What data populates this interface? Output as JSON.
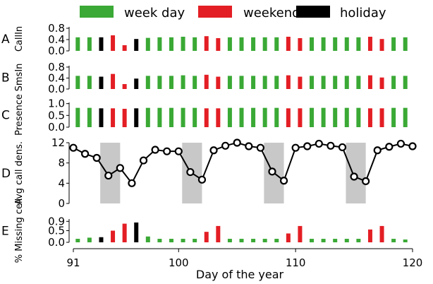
{
  "legend": [
    {
      "label": "week day",
      "color": "#3aa935"
    },
    {
      "label": "weekend",
      "color": "#e31e24"
    },
    {
      "label": "holiday",
      "color": "#000000"
    }
  ],
  "xaxis": {
    "label": "Day of the year",
    "ticks": [
      91,
      100,
      110,
      120
    ],
    "range": [
      91,
      120
    ]
  },
  "chart_data": [
    {
      "type": "bar",
      "panel_label": "A",
      "ylabel": "CallIn",
      "ylim": [
        0,
        0.85
      ],
      "yticks": [
        0.0,
        0.4,
        0.8
      ],
      "ytick_labels": [
        "0.0",
        "0.4",
        "0.8"
      ],
      "x": [
        91,
        92,
        93,
        94,
        95,
        96,
        97,
        98,
        99,
        100,
        101,
        102,
        103,
        104,
        105,
        106,
        107,
        108,
        109,
        110,
        111,
        112,
        113,
        114,
        115,
        116,
        117,
        118,
        119
      ],
      "categories": [
        "weekday",
        "weekday",
        "holiday",
        "weekend",
        "weekend",
        "holiday",
        "weekday",
        "weekday",
        "weekday",
        "weekday",
        "weekday",
        "weekend",
        "weekend",
        "weekday",
        "weekday",
        "weekday",
        "weekday",
        "weekday",
        "weekend",
        "weekend",
        "weekday",
        "weekday",
        "weekday",
        "weekday",
        "weekday",
        "weekend",
        "weekend",
        "weekday",
        "weekday"
      ],
      "values": [
        0.48,
        0.48,
        0.48,
        0.55,
        0.2,
        0.42,
        0.46,
        0.48,
        0.48,
        0.5,
        0.48,
        0.52,
        0.45,
        0.48,
        0.48,
        0.48,
        0.48,
        0.48,
        0.5,
        0.45,
        0.48,
        0.48,
        0.48,
        0.48,
        0.48,
        0.5,
        0.42,
        0.48,
        0.48
      ]
    },
    {
      "type": "bar",
      "panel_label": "B",
      "ylabel": "SmsIn",
      "ylim": [
        0,
        0.85
      ],
      "yticks": [
        0.0,
        0.4,
        0.8
      ],
      "ytick_labels": [
        "0.0",
        "0.4",
        "0.8"
      ],
      "x": [
        91,
        92,
        93,
        94,
        95,
        96,
        97,
        98,
        99,
        100,
        101,
        102,
        103,
        104,
        105,
        106,
        107,
        108,
        109,
        110,
        111,
        112,
        113,
        114,
        115,
        116,
        117,
        118,
        119
      ],
      "categories": [
        "weekday",
        "weekday",
        "holiday",
        "weekend",
        "weekend",
        "holiday",
        "weekday",
        "weekday",
        "weekday",
        "weekday",
        "weekday",
        "weekend",
        "weekend",
        "weekday",
        "weekday",
        "weekday",
        "weekday",
        "weekday",
        "weekend",
        "weekend",
        "weekday",
        "weekday",
        "weekday",
        "weekday",
        "weekday",
        "weekend",
        "weekend",
        "weekday",
        "weekday"
      ],
      "values": [
        0.48,
        0.48,
        0.45,
        0.55,
        0.18,
        0.38,
        0.48,
        0.48,
        0.48,
        0.5,
        0.48,
        0.52,
        0.45,
        0.48,
        0.48,
        0.48,
        0.48,
        0.48,
        0.5,
        0.45,
        0.48,
        0.48,
        0.48,
        0.48,
        0.48,
        0.5,
        0.42,
        0.48,
        0.48
      ]
    },
    {
      "type": "bar",
      "panel_label": "C",
      "ylabel": "Presence",
      "ylim": [
        0,
        1.05
      ],
      "yticks": [
        0.0,
        0.5,
        1.0
      ],
      "ytick_labels": [
        "0.0",
        "0.5",
        "1.0"
      ],
      "x": [
        91,
        92,
        93,
        94,
        95,
        96,
        97,
        98,
        99,
        100,
        101,
        102,
        103,
        104,
        105,
        106,
        107,
        108,
        109,
        110,
        111,
        112,
        113,
        114,
        115,
        116,
        117,
        118,
        119
      ],
      "categories": [
        "weekday",
        "weekday",
        "holiday",
        "weekend",
        "weekend",
        "holiday",
        "weekday",
        "weekday",
        "weekday",
        "weekday",
        "weekday",
        "weekend",
        "weekend",
        "weekday",
        "weekday",
        "weekday",
        "weekday",
        "weekday",
        "weekend",
        "weekend",
        "weekday",
        "weekday",
        "weekday",
        "weekday",
        "weekday",
        "weekend",
        "weekend",
        "weekday",
        "weekday"
      ],
      "values": [
        0.82,
        0.82,
        0.8,
        0.8,
        0.78,
        0.8,
        0.82,
        0.82,
        0.82,
        0.82,
        0.82,
        0.8,
        0.8,
        0.82,
        0.82,
        0.82,
        0.82,
        0.82,
        0.8,
        0.8,
        0.82,
        0.82,
        0.82,
        0.82,
        0.82,
        0.8,
        0.8,
        0.82,
        0.82
      ]
    },
    {
      "type": "line",
      "panel_label": "D",
      "ylabel": "Avg call dens.",
      "ylim": [
        0,
        12
      ],
      "yticks": [
        0,
        4,
        8,
        12
      ],
      "ytick_labels": [
        "0",
        "4",
        "8",
        "12"
      ],
      "shaded_ranges": [
        [
          93.3,
          95.0
        ],
        [
          100.3,
          102.0
        ],
        [
          107.3,
          109.0
        ],
        [
          114.3,
          116.0
        ]
      ],
      "x": [
        91,
        92,
        93,
        94,
        95,
        96,
        97,
        98,
        99,
        100,
        101,
        102,
        103,
        104,
        105,
        106,
        107,
        108,
        109,
        110,
        111,
        112,
        113,
        114,
        115,
        116,
        117,
        118,
        119,
        120
      ],
      "values": [
        11.0,
        9.8,
        9.0,
        5.5,
        7.0,
        4.0,
        8.5,
        10.6,
        10.3,
        10.3,
        6.2,
        4.7,
        10.5,
        11.4,
        12.0,
        11.3,
        11.0,
        6.3,
        4.5,
        11.0,
        11.3,
        11.8,
        11.4,
        11.1,
        5.3,
        4.4,
        10.5,
        11.2,
        11.8,
        11.3
      ]
    },
    {
      "type": "bar",
      "panel_label": "E",
      "ylabel": "% Missing cell",
      "ylim": [
        0,
        1.0
      ],
      "yticks": [
        0.0,
        0.5,
        0.9
      ],
      "ytick_labels": [
        "0.0",
        "0.5",
        "0.9"
      ],
      "x": [
        91,
        92,
        93,
        94,
        95,
        96,
        97,
        98,
        99,
        100,
        101,
        102,
        103,
        104,
        105,
        106,
        107,
        108,
        109,
        110,
        111,
        112,
        113,
        114,
        115,
        116,
        117,
        118,
        119
      ],
      "categories": [
        "weekday",
        "weekday",
        "holiday",
        "weekend",
        "weekend",
        "holiday",
        "weekday",
        "weekday",
        "weekday",
        "weekday",
        "weekday",
        "weekend",
        "weekend",
        "weekday",
        "weekday",
        "weekday",
        "weekday",
        "weekday",
        "weekend",
        "weekend",
        "weekday",
        "weekday",
        "weekday",
        "weekday",
        "weekday",
        "weekend",
        "weekend",
        "weekday",
        "weekday"
      ],
      "values": [
        0.15,
        0.2,
        0.22,
        0.5,
        0.8,
        0.85,
        0.25,
        0.15,
        0.15,
        0.15,
        0.15,
        0.45,
        0.7,
        0.15,
        0.15,
        0.15,
        0.15,
        0.15,
        0.38,
        0.7,
        0.15,
        0.15,
        0.15,
        0.15,
        0.15,
        0.55,
        0.7,
        0.15,
        0.12
      ]
    }
  ]
}
